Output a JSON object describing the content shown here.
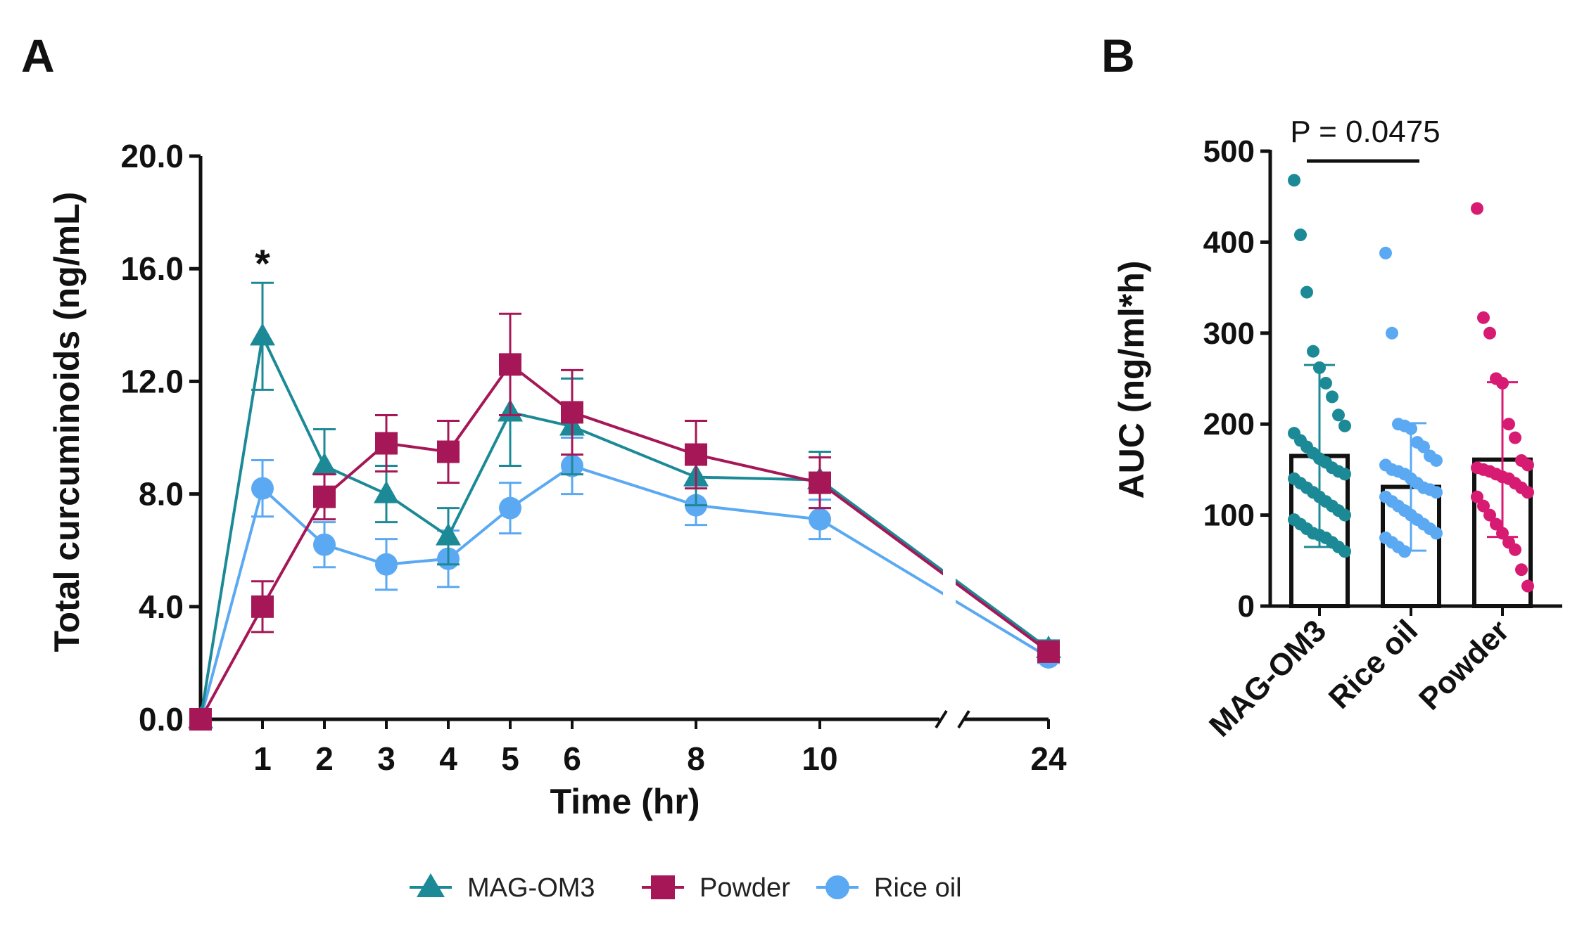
{
  "colors": {
    "MAG-OM3": "#1c8a96",
    "Powder": "#a51756",
    "Rice oil": "#5aa9f2",
    "Powder_dots": "#d81b72",
    "axis": "#111111"
  },
  "chart_data": [
    {
      "panel": "A",
      "type": "line",
      "title": "",
      "xlabel": "Time (hr)",
      "ylabel": "Total curcuminoids (ng/mL)",
      "ylim": [
        0,
        20
      ],
      "y_ticks": [
        "0.0",
        "4.0",
        "8.0",
        "12.0",
        "16.0",
        "20.0"
      ],
      "y_tick_values": [
        0,
        4,
        8,
        12,
        16,
        20
      ],
      "x_ticks": [
        "1",
        "2",
        "3",
        "4",
        "5",
        "6",
        "8",
        "10",
        "24"
      ],
      "x_tick_values": [
        1,
        2,
        3,
        4,
        5,
        6,
        8,
        10,
        24
      ],
      "axis_break": "between 10 and 24",
      "annotation": "*",
      "annotation_x": 1,
      "annotation_y": 16.2,
      "series": [
        {
          "name": "MAG-OM3",
          "marker": "triangle",
          "x": [
            0,
            1,
            2,
            3,
            4,
            5,
            6,
            8,
            10,
            24
          ],
          "values": [
            0,
            13.6,
            9.0,
            8.0,
            6.5,
            10.9,
            10.4,
            8.6,
            8.5,
            2.5
          ],
          "err": [
            0,
            1.9,
            1.3,
            1.0,
            1.0,
            1.9,
            1.7,
            1.0,
            1.0,
            0.3
          ]
        },
        {
          "name": "Powder",
          "marker": "square",
          "x": [
            0,
            1,
            2,
            3,
            4,
            5,
            6,
            8,
            10,
            24
          ],
          "values": [
            0,
            4.0,
            7.9,
            9.8,
            9.5,
            12.6,
            10.9,
            9.4,
            8.4,
            2.4
          ],
          "err": [
            0,
            0.9,
            0.8,
            1.0,
            1.1,
            1.8,
            1.5,
            1.2,
            0.9,
            0.3
          ]
        },
        {
          "name": "Rice oil",
          "marker": "circle",
          "x": [
            0,
            1,
            2,
            3,
            4,
            5,
            6,
            8,
            10,
            24
          ],
          "values": [
            0,
            8.2,
            6.2,
            5.5,
            5.7,
            7.5,
            9.0,
            7.6,
            7.1,
            2.2
          ],
          "err": [
            0,
            1.0,
            0.8,
            0.9,
            1.0,
            0.9,
            1.0,
            0.7,
            0.7,
            0.2
          ]
        }
      ],
      "legend": [
        "MAG-OM3",
        "Powder",
        "Rice oil"
      ],
      "legend_position": "bottom"
    },
    {
      "panel": "B",
      "type": "bar",
      "title": "",
      "xlabel": "",
      "ylabel": "AUC (ng/ml*h)",
      "ylim": [
        0,
        500
      ],
      "y_ticks": [
        "0",
        "100",
        "200",
        "300",
        "400",
        "500"
      ],
      "y_tick_values": [
        0,
        100,
        200,
        300,
        400,
        500
      ],
      "categories": [
        "MAG-OM3",
        "Rice oil",
        "Powder"
      ],
      "values": [
        165,
        131,
        161
      ],
      "sd": [
        100,
        70,
        85
      ],
      "significance": {
        "label": "P = 0.0475",
        "between": [
          "MAG-OM3",
          "Rice oil"
        ]
      },
      "points": [
        [
          468,
          408,
          345,
          280,
          262,
          245,
          230,
          210,
          198,
          190,
          182,
          175,
          168,
          162,
          158,
          152,
          148,
          145,
          140,
          135,
          130,
          125,
          120,
          115,
          110,
          105,
          100,
          95,
          90,
          85,
          80,
          78,
          75,
          70,
          65,
          60
        ],
        [
          388,
          300,
          200,
          198,
          195,
          180,
          175,
          165,
          160,
          155,
          150,
          148,
          145,
          140,
          135,
          130,
          128,
          125,
          120,
          115,
          110,
          105,
          100,
          95,
          90,
          85,
          80,
          75,
          70,
          65,
          60
        ],
        [
          437,
          317,
          300,
          250,
          245,
          200,
          185,
          160,
          155,
          152,
          150,
          148,
          145,
          142,
          140,
          135,
          130,
          125,
          120,
          110,
          100,
          90,
          80,
          70,
          62,
          40,
          22
        ]
      ]
    }
  ]
}
